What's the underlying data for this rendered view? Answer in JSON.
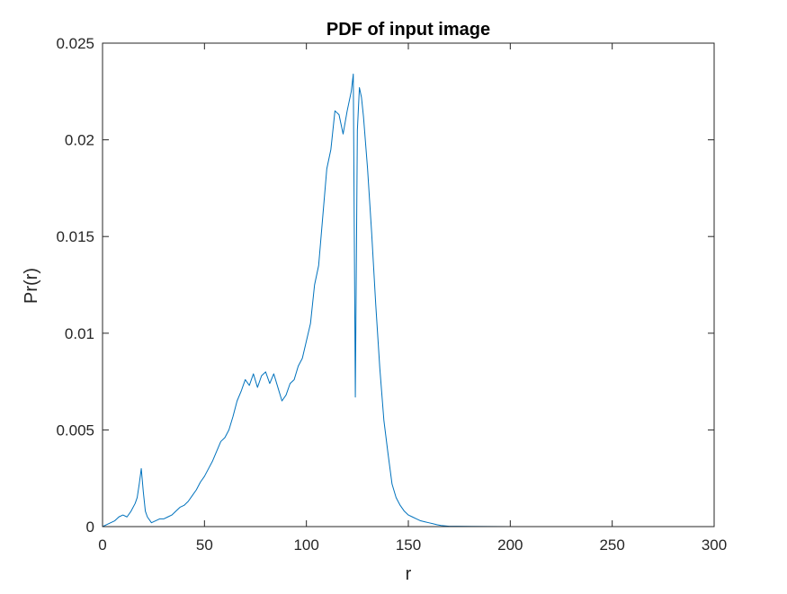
{
  "chart_data": {
    "type": "line",
    "title": "PDF of input image",
    "xlabel": "r",
    "ylabel": "Pr(r)",
    "xlim": [
      0,
      300
    ],
    "ylim": [
      0,
      0.025
    ],
    "xticks": [
      0,
      50,
      100,
      150,
      200,
      250,
      300
    ],
    "yticks": [
      0,
      0.005,
      0.01,
      0.015,
      0.02,
      0.025
    ],
    "xtick_labels": [
      "0",
      "50",
      "100",
      "150",
      "200",
      "250",
      "300"
    ],
    "ytick_labels": [
      "0",
      "0.005",
      "0.01",
      "0.015",
      "0.02",
      "0.025"
    ],
    "grid": false,
    "legend": "none",
    "line_color": "#0072BD",
    "series": [
      {
        "x": [
          0,
          2,
          4,
          6,
          8,
          10,
          12,
          14,
          16,
          17,
          18,
          19,
          20,
          21,
          22,
          24,
          26,
          28,
          30,
          32,
          34,
          36,
          38,
          40,
          42,
          44,
          46,
          48,
          50,
          52,
          54,
          56,
          58,
          60,
          62,
          64,
          66,
          68,
          70,
          72,
          74,
          76,
          78,
          80,
          82,
          84,
          86,
          88,
          90,
          92,
          94,
          96,
          98,
          100,
          102,
          104,
          106,
          108,
          110,
          112,
          114,
          116,
          118,
          120,
          122,
          123,
          124,
          125,
          126,
          127,
          128,
          130,
          132,
          134,
          136,
          138,
          140,
          142,
          144,
          146,
          148,
          150,
          152,
          154,
          156,
          158,
          160,
          162,
          164,
          166,
          170,
          180,
          200,
          220,
          240,
          255
        ],
        "y": [
          0,
          0.0001,
          0.0002,
          0.0003,
          0.0005,
          0.0006,
          0.0005,
          0.0008,
          0.0012,
          0.0015,
          0.0022,
          0.003,
          0.0018,
          0.0008,
          0.0005,
          0.0002,
          0.0003,
          0.0004,
          0.0004,
          0.0005,
          0.0006,
          0.0008,
          0.001,
          0.0011,
          0.0013,
          0.0016,
          0.0019,
          0.0023,
          0.0026,
          0.003,
          0.0034,
          0.0039,
          0.0044,
          0.0046,
          0.005,
          0.0057,
          0.0065,
          0.007,
          0.0076,
          0.0073,
          0.0079,
          0.0072,
          0.0078,
          0.008,
          0.0074,
          0.0079,
          0.0072,
          0.0065,
          0.0068,
          0.0074,
          0.0076,
          0.0083,
          0.0087,
          0.0096,
          0.0105,
          0.0125,
          0.0135,
          0.016,
          0.0185,
          0.0195,
          0.0215,
          0.0213,
          0.0203,
          0.0215,
          0.0225,
          0.0234,
          0.0067,
          0.0205,
          0.0227,
          0.0222,
          0.0212,
          0.0185,
          0.0152,
          0.0115,
          0.0082,
          0.0055,
          0.0038,
          0.0022,
          0.0015,
          0.0011,
          0.0008,
          0.0006,
          0.0005,
          0.0004,
          0.0003,
          0.00025,
          0.0002,
          0.00015,
          0.0001,
          6e-05,
          2e-05,
          1e-05,
          0,
          0,
          0,
          0
        ]
      }
    ]
  }
}
